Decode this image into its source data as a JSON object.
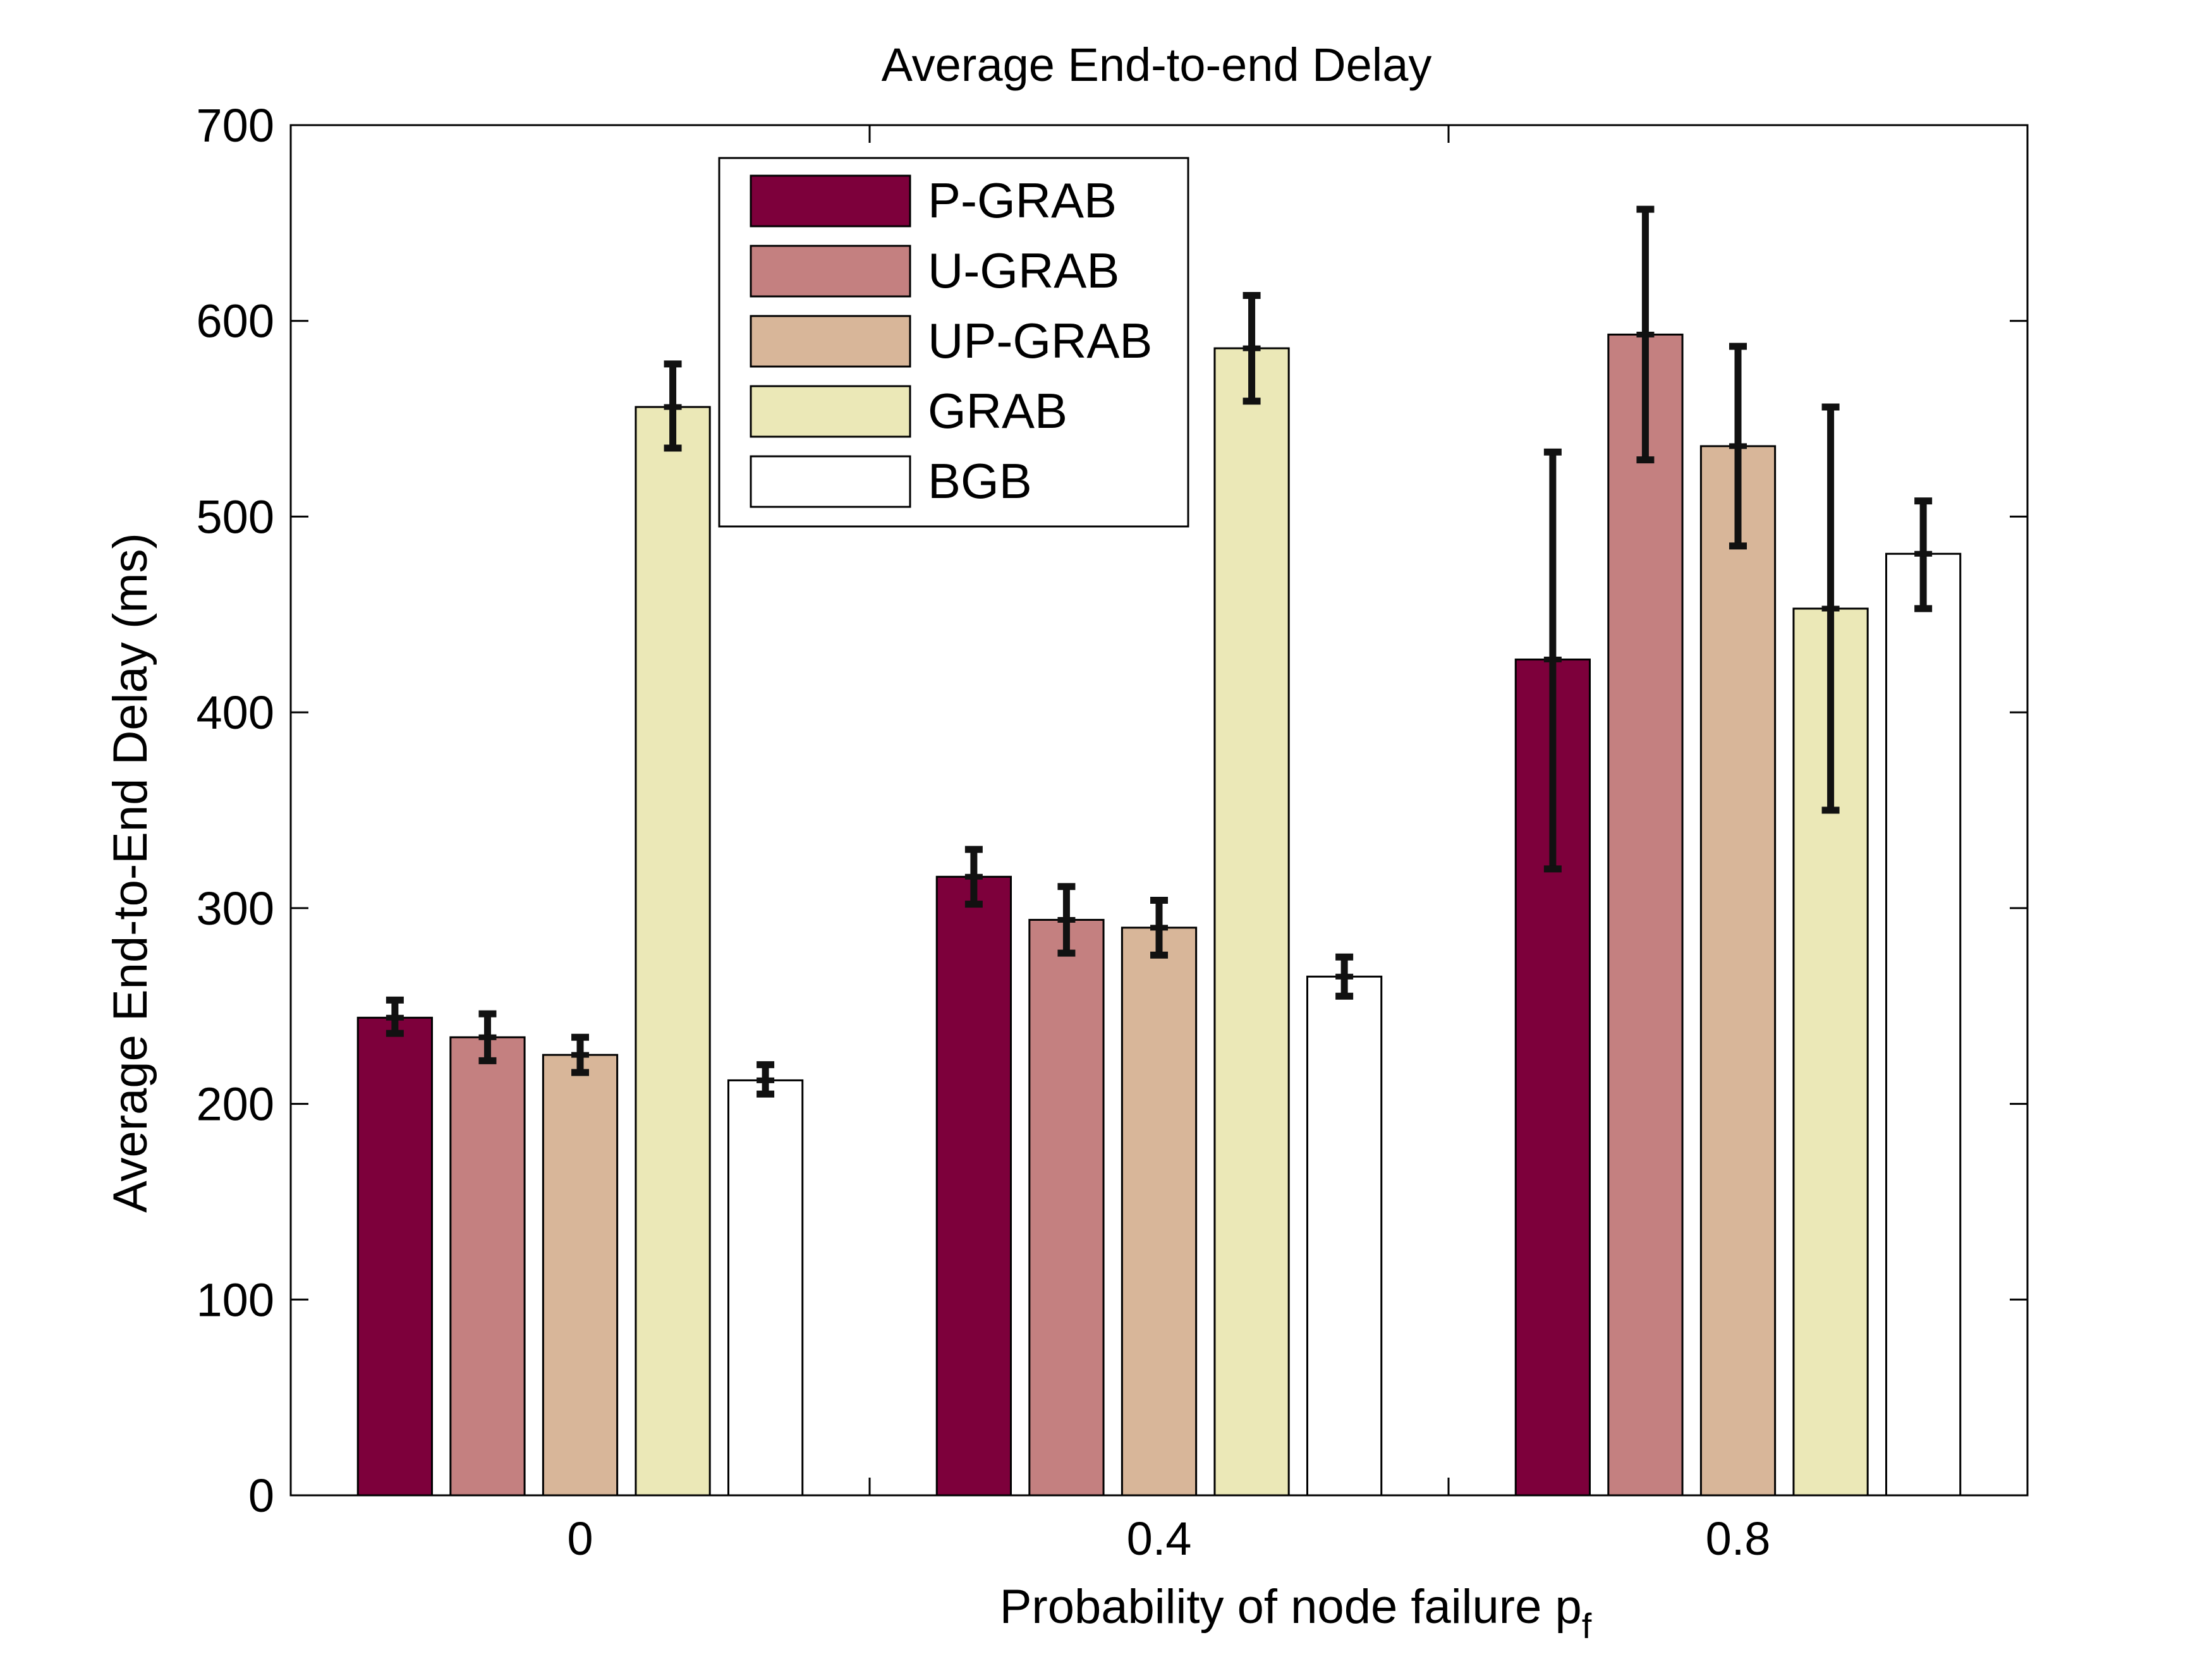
{
  "chart_data": {
    "type": "bar",
    "title": "Average End-to-end Delay",
    "xlabel": "Probability of node failure p",
    "xlabel_subscript": "f",
    "ylabel": "Average End-to-End Delay (ms)",
    "categories": [
      "0",
      "0.4",
      "0.8"
    ],
    "ylim": [
      0,
      700
    ],
    "yticks": [
      0,
      100,
      200,
      300,
      400,
      500,
      600,
      700
    ],
    "ytick_labels": [
      "0",
      "100",
      "200",
      "300",
      "400",
      "500",
      "600",
      "700"
    ],
    "legend_position": "top-center-left",
    "series": [
      {
        "name": "P-GRAB",
        "color": "#7d003b",
        "values": [
          244,
          316,
          427
        ],
        "error_low": [
          236,
          302,
          320
        ],
        "error_high": [
          253,
          330,
          533
        ]
      },
      {
        "name": "U-GRAB",
        "color": "#c48080",
        "values": [
          234,
          294,
          593
        ],
        "error_low": [
          222,
          277,
          529
        ],
        "error_high": [
          246,
          311,
          657
        ]
      },
      {
        "name": "UP-GRAB",
        "color": "#d8b699",
        "values": [
          225,
          290,
          536
        ],
        "error_low": [
          216,
          276,
          485
        ],
        "error_high": [
          234,
          304,
          587
        ]
      },
      {
        "name": "GRAB",
        "color": "#ebe8b7",
        "values": [
          556,
          586,
          453
        ],
        "error_low": [
          535,
          559,
          350
        ],
        "error_high": [
          578,
          613,
          556
        ]
      },
      {
        "name": "BGB",
        "color": "#ffffff",
        "values": [
          212,
          265,
          481
        ],
        "error_low": [
          205,
          255,
          453
        ],
        "error_high": [
          220,
          275,
          508
        ]
      }
    ]
  }
}
